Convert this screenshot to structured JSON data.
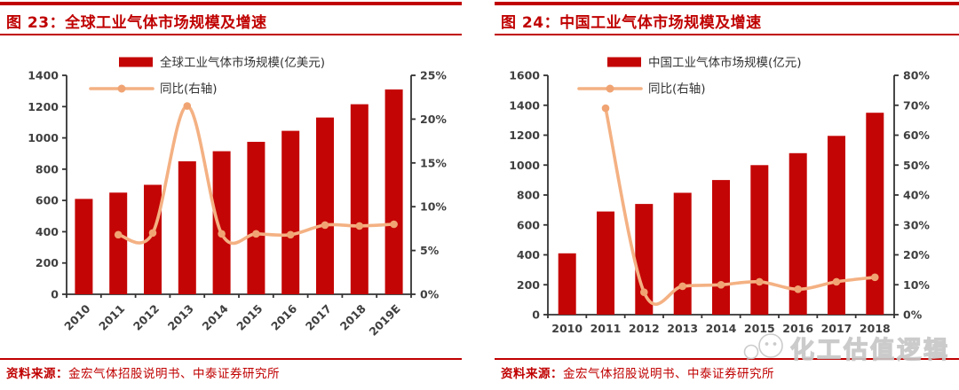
{
  "colors": {
    "accent_red": "#C00000",
    "bar": "#C40505",
    "line": "#F4B183",
    "marker": "#F0A473",
    "axis_line": "#333333",
    "axis_text": "#3F3F3F",
    "watermark_gray": "#C6C6C6"
  },
  "panels": [
    {
      "fig_label": "图 23：",
      "title": "全球工业气体市场规模及增速",
      "source_label": "资料来源：",
      "source_text": "金宏气体招股说明书、中泰证券研究所"
    },
    {
      "fig_label": "图 24：",
      "title": "中国工业气体市场规模及增速",
      "source_label": "资料来源：",
      "source_text": "金宏气体招股说明书、中泰证券研究所"
    }
  ],
  "watermark": {
    "icon": "wechat-icon",
    "text": "化工估值逻辑"
  },
  "chart_data": [
    {
      "type": "bar",
      "title": "全球工业气体市场规模及增速",
      "categories": [
        "2010",
        "2011",
        "2012",
        "2013",
        "2014",
        "2015",
        "2016",
        "2017",
        "2018",
        "2019E"
      ],
      "series": [
        {
          "name": "全球工业气体市场规模(亿美元)",
          "type": "bar",
          "axis": "left",
          "values": [
            610,
            650,
            700,
            850,
            915,
            975,
            1045,
            1130,
            1215,
            1310
          ]
        },
        {
          "name": "同比(右轴)",
          "type": "line",
          "axis": "right",
          "values": [
            null,
            6.8,
            7.0,
            21.5,
            6.9,
            6.9,
            6.8,
            7.9,
            7.8,
            8.0
          ]
        }
      ],
      "left_axis": {
        "min": 0,
        "max": 1400,
        "step": 200
      },
      "right_axis": {
        "min": 0,
        "max": 25,
        "step": 5,
        "suffix": "%"
      },
      "x_labels_rotated": true,
      "legend_position": "top",
      "grid": false
    },
    {
      "type": "bar",
      "title": "中国工业气体市场规模及增速",
      "categories": [
        "2010",
        "2011",
        "2012",
        "2013",
        "2014",
        "2015",
        "2016",
        "2017",
        "2018"
      ],
      "series": [
        {
          "name": "中国工业气体市场规模(亿元)",
          "type": "bar",
          "axis": "left",
          "values": [
            410,
            690,
            740,
            815,
            900,
            1000,
            1080,
            1195,
            1350
          ]
        },
        {
          "name": "同比(右轴)",
          "type": "line",
          "axis": "right",
          "values": [
            null,
            69,
            7.5,
            9.5,
            10,
            11,
            8.5,
            11,
            12.5
          ]
        }
      ],
      "left_axis": {
        "min": 0,
        "max": 1600,
        "step": 200
      },
      "right_axis": {
        "min": 0,
        "max": 80,
        "step": 10,
        "suffix": "%"
      },
      "x_labels_rotated": false,
      "legend_position": "top",
      "grid": false
    }
  ]
}
